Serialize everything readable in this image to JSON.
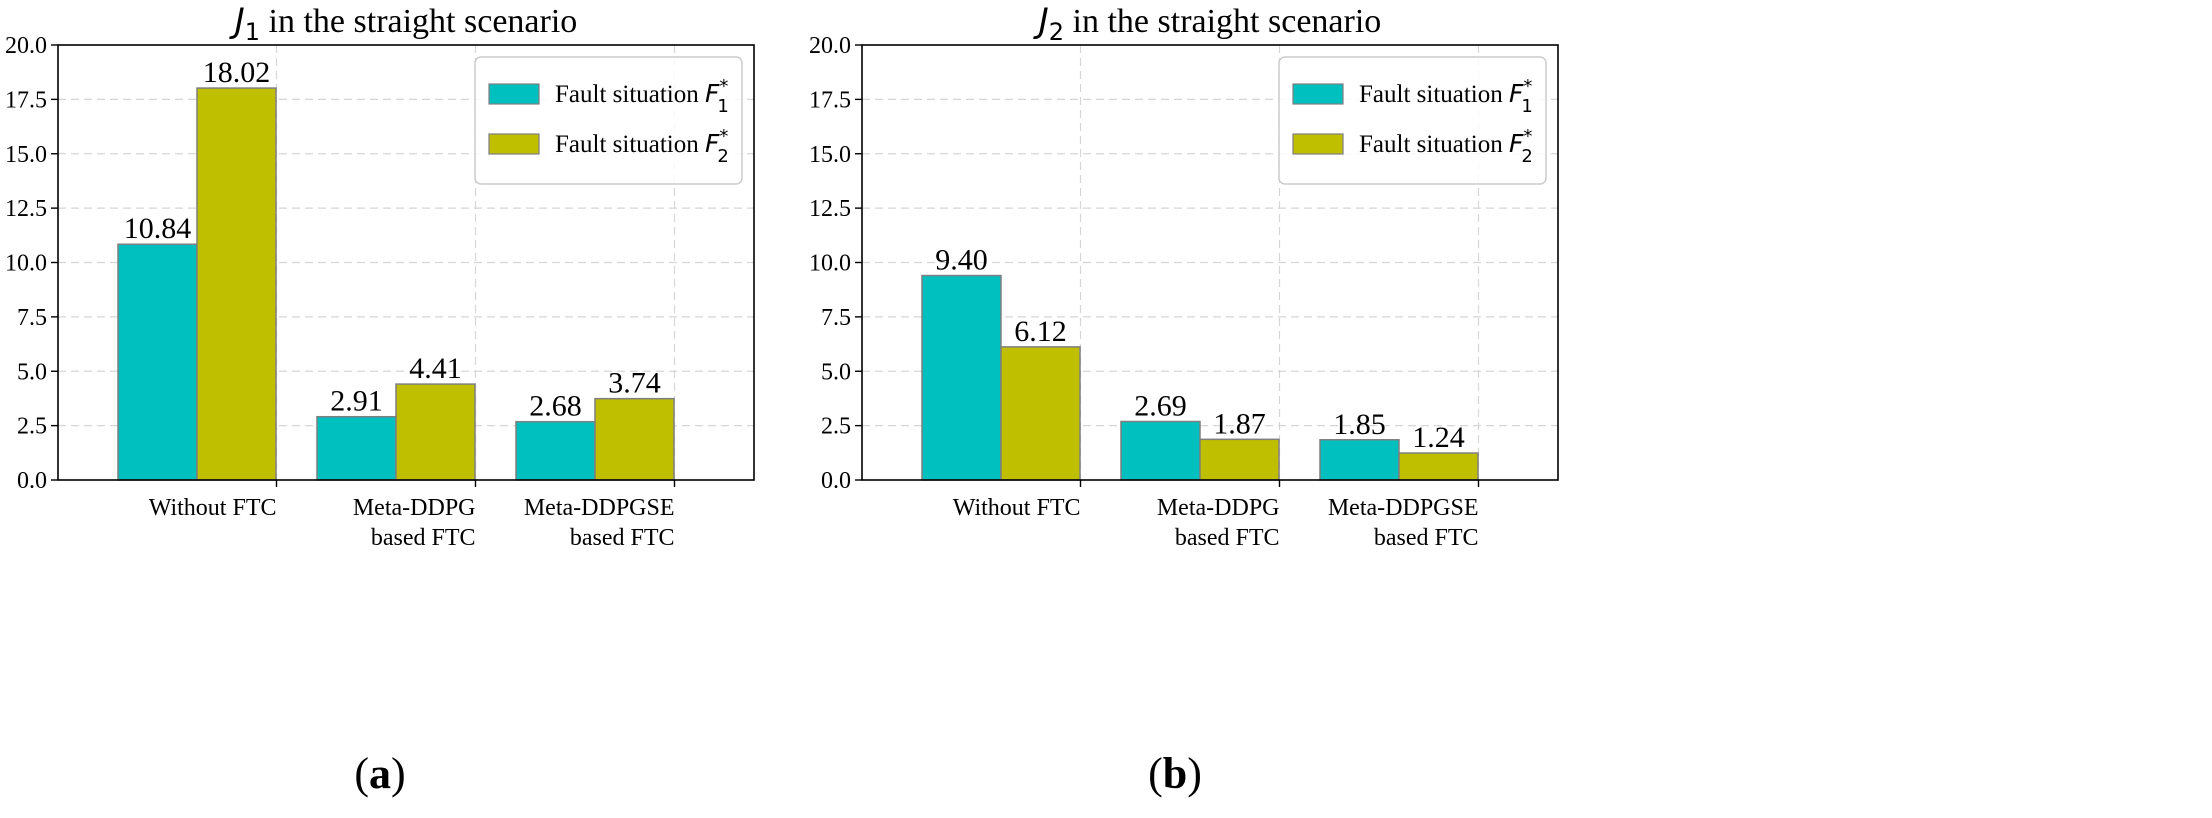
{
  "colors": {
    "series1": "#00bfbf",
    "series2": "#bfbf00",
    "edge": "#7f7f7f",
    "grid": "#d6d6d6",
    "axis": "#000000"
  },
  "chart_data": [
    {
      "type": "bar",
      "title_symbol": "J",
      "title_subscript": "1",
      "title_rest": " in the straight scenario",
      "panel_label": "a",
      "categories": [
        {
          "line1": "Without FTC",
          "line2": ""
        },
        {
          "line1": "Meta-DDPG",
          "line2": "based FTC"
        },
        {
          "line1": "Meta-DDPGSE",
          "line2": "based FTC"
        }
      ],
      "series": [
        {
          "name_text": "Fault situation ",
          "name_symbol": "F",
          "name_sub": "1",
          "name_sup": "*",
          "values": [
            10.84,
            2.91,
            2.68
          ],
          "labels": [
            "10.84",
            "2.91",
            "2.68"
          ]
        },
        {
          "name_text": "Fault situation ",
          "name_symbol": "F",
          "name_sub": "2",
          "name_sup": "*",
          "values": [
            18.02,
            4.41,
            3.74
          ],
          "labels": [
            "18.02",
            "4.41",
            "3.74"
          ]
        }
      ],
      "ylim": [
        0,
        20
      ],
      "yticks": [
        "0.0",
        "2.5",
        "5.0",
        "7.5",
        "10.0",
        "12.5",
        "15.0",
        "17.5",
        "20.0"
      ],
      "grid": true,
      "legend_position": "top-right"
    },
    {
      "type": "bar",
      "title_symbol": "J",
      "title_subscript": "2",
      "title_rest": " in the straight scenario",
      "panel_label": "b",
      "categories": [
        {
          "line1": "Without FTC",
          "line2": ""
        },
        {
          "line1": "Meta-DDPG",
          "line2": "based FTC"
        },
        {
          "line1": "Meta-DDPGSE",
          "line2": "based FTC"
        }
      ],
      "series": [
        {
          "name_text": "Fault situation ",
          "name_symbol": "F",
          "name_sub": "1",
          "name_sup": "*",
          "values": [
            9.4,
            2.69,
            1.85
          ],
          "labels": [
            "9.40",
            "2.69",
            "1.85"
          ]
        },
        {
          "name_text": "Fault situation ",
          "name_symbol": "F",
          "name_sub": "2",
          "name_sup": "*",
          "values": [
            6.12,
            1.87,
            1.24
          ],
          "labels": [
            "6.12",
            "1.87",
            "1.24"
          ]
        }
      ],
      "ylim": [
        0,
        20
      ],
      "yticks": [
        "0.0",
        "2.5",
        "5.0",
        "7.5",
        "10.0",
        "12.5",
        "15.0",
        "17.5",
        "20.0"
      ],
      "grid": true,
      "legend_position": "top-right"
    }
  ]
}
